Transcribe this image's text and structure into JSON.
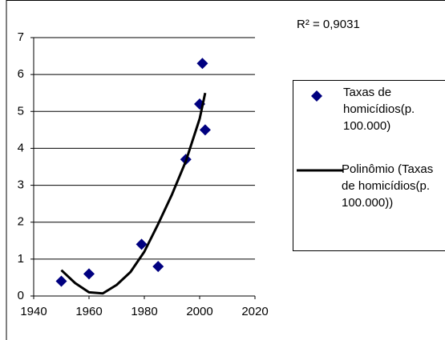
{
  "chart_data": {
    "type": "scatter",
    "annotation": "R² = 0,9031",
    "series": [
      {
        "name": "Taxas de homicídios(p. 100.000)",
        "color": "#000080",
        "type": "scatter",
        "x": [
          1950,
          1960,
          1979,
          1985,
          1995,
          2000,
          2001,
          2002
        ],
        "values": [
          0.4,
          0.6,
          1.4,
          0.8,
          3.7,
          5.2,
          6.3,
          4.5
        ]
      },
      {
        "name": "Polinômio (Taxas de homicídios(p. 100.000))",
        "color": "#000000",
        "type": "line",
        "x": [
          1950,
          1955,
          1960,
          1965,
          1970,
          1975,
          1980,
          1985,
          1990,
          1995,
          2000,
          2002
        ],
        "values": [
          0.7,
          0.35,
          0.1,
          0.07,
          0.3,
          0.65,
          1.2,
          1.95,
          2.75,
          3.65,
          4.8,
          5.5
        ]
      }
    ],
    "xlim": [
      1940,
      2020
    ],
    "xticks": [
      1940,
      1960,
      1980,
      2000,
      2020
    ],
    "ylim": [
      0,
      7
    ],
    "yticks": [
      0,
      1,
      2,
      3,
      4,
      5,
      6,
      7
    ],
    "grid": true
  }
}
